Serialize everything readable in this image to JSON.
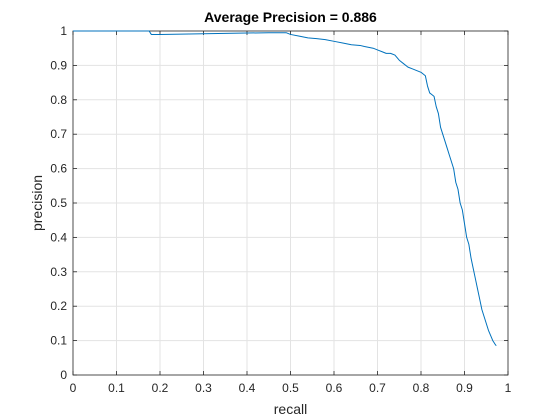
{
  "chart_data": {
    "type": "line",
    "title": "Average Precision = 0.886",
    "xlabel": "recall",
    "ylabel": "precision",
    "xlim": [
      0,
      1
    ],
    "ylim": [
      0,
      1
    ],
    "grid": true,
    "x_ticks": [
      0,
      0.1,
      0.2,
      0.3,
      0.4,
      0.5,
      0.6,
      0.7,
      0.8,
      0.9,
      1
    ],
    "x_tick_labels": [
      "0",
      "0.1",
      "0.2",
      "0.3",
      "0.4",
      "0.5",
      "0.6",
      "0.7",
      "0.8",
      "0.9",
      "1"
    ],
    "y_ticks": [
      0,
      0.1,
      0.2,
      0.3,
      0.4,
      0.5,
      0.6,
      0.7,
      0.8,
      0.9,
      1
    ],
    "y_tick_labels": [
      "0",
      "0.1",
      "0.2",
      "0.3",
      "0.4",
      "0.5",
      "0.6",
      "0.7",
      "0.8",
      "0.9",
      "1"
    ],
    "line_color": "#0072bd",
    "series": [
      {
        "x": [
          0.0,
          0.05,
          0.1,
          0.15,
          0.175,
          0.18,
          0.2,
          0.25,
          0.3,
          0.35,
          0.4,
          0.45,
          0.49,
          0.5,
          0.52,
          0.54,
          0.56,
          0.58,
          0.6,
          0.62,
          0.64,
          0.66,
          0.67,
          0.69,
          0.7,
          0.71,
          0.72,
          0.73,
          0.74,
          0.75,
          0.76,
          0.77,
          0.78,
          0.79,
          0.8,
          0.81,
          0.815,
          0.82,
          0.825,
          0.83,
          0.835,
          0.84,
          0.845,
          0.85,
          0.855,
          0.86,
          0.865,
          0.87,
          0.875,
          0.88,
          0.885,
          0.89,
          0.895,
          0.9,
          0.905,
          0.91,
          0.915,
          0.92,
          0.925,
          0.93,
          0.935,
          0.94,
          0.945,
          0.95,
          0.955,
          0.96,
          0.965,
          0.97,
          0.973
        ],
        "y": [
          1.0,
          1.0,
          1.0,
          1.0,
          1.0,
          0.99,
          0.99,
          0.991,
          0.992,
          0.993,
          0.994,
          0.995,
          0.995,
          0.99,
          0.985,
          0.98,
          0.978,
          0.975,
          0.97,
          0.965,
          0.96,
          0.958,
          0.955,
          0.95,
          0.945,
          0.94,
          0.935,
          0.935,
          0.93,
          0.915,
          0.905,
          0.895,
          0.89,
          0.885,
          0.88,
          0.87,
          0.84,
          0.82,
          0.815,
          0.81,
          0.78,
          0.76,
          0.72,
          0.7,
          0.68,
          0.66,
          0.64,
          0.62,
          0.6,
          0.56,
          0.54,
          0.5,
          0.48,
          0.44,
          0.4,
          0.38,
          0.34,
          0.31,
          0.28,
          0.25,
          0.22,
          0.19,
          0.17,
          0.15,
          0.13,
          0.115,
          0.1,
          0.09,
          0.085
        ]
      }
    ]
  }
}
